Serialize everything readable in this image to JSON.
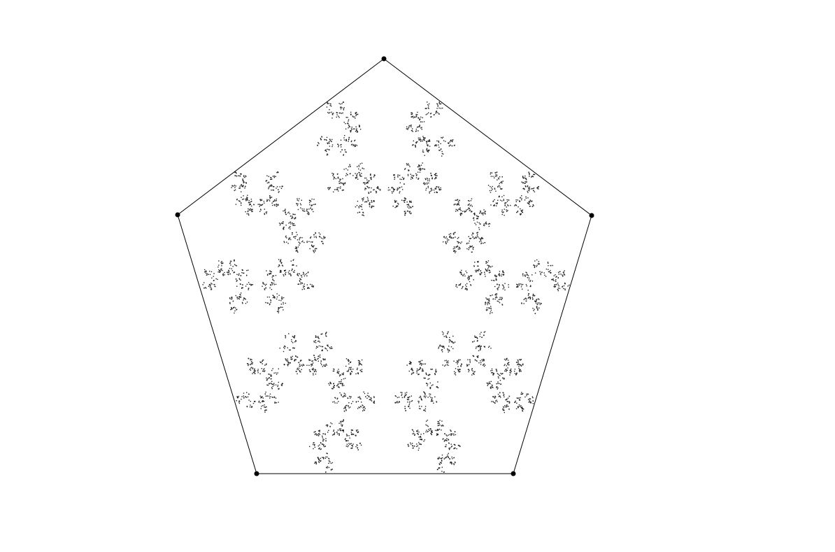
{
  "diagram": {
    "type": "chaos-game",
    "shape": "regular-pentagon",
    "vertex_count": 5,
    "jump_ratio": 0.618,
    "point_count": 4200,
    "colors": {
      "background": "#ffffff",
      "edge": "#000000",
      "vertex": "#000000",
      "point": "#222222"
    }
  }
}
